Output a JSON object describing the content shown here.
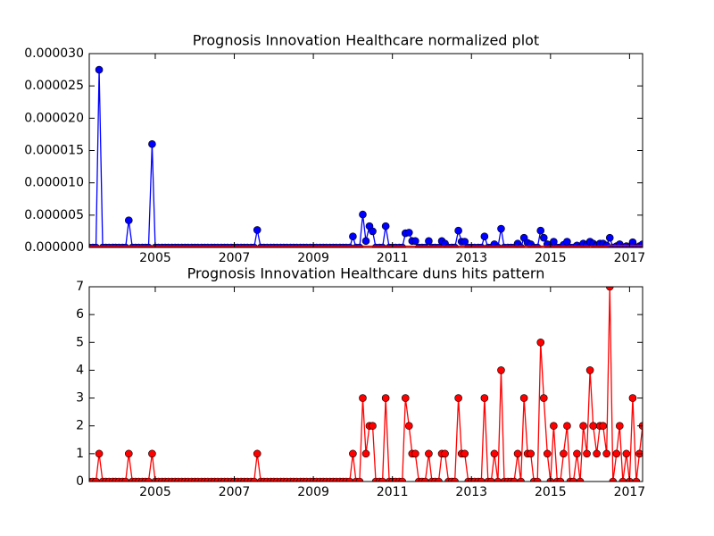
{
  "chart_data": [
    {
      "type": "line",
      "title": "Prognosis Innovation Healthcare normalized plot",
      "xlim": [
        2003.33,
        2017.33
      ],
      "xticks": [
        2005,
        2007,
        2009,
        2011,
        2013,
        2015,
        2017
      ],
      "ylim": [
        0,
        3e-05
      ],
      "yticks": [
        {
          "value": 0,
          "label": "0.000000"
        },
        {
          "value": 5e-06,
          "label": "0.000005"
        },
        {
          "value": 1e-05,
          "label": "0.000010"
        },
        {
          "value": 1.5e-05,
          "label": "0.000015"
        },
        {
          "value": 2e-05,
          "label": "0.000020"
        },
        {
          "value": 2.5e-05,
          "label": "0.000025"
        },
        {
          "value": 3e-05,
          "label": "0.000030"
        }
      ],
      "x": [
        2003.33,
        2003.42,
        2003.5,
        2003.58,
        2003.67,
        2003.75,
        2003.83,
        2003.92,
        2004,
        2004.08,
        2004.17,
        2004.25,
        2004.33,
        2004.42,
        2004.5,
        2004.58,
        2004.67,
        2004.75,
        2004.83,
        2004.92,
        2005,
        2005.08,
        2005.17,
        2005.25,
        2005.33,
        2005.42,
        2005.5,
        2005.58,
        2005.67,
        2005.75,
        2005.83,
        2005.92,
        2006,
        2006.08,
        2006.17,
        2006.25,
        2006.33,
        2006.42,
        2006.5,
        2006.58,
        2006.67,
        2006.75,
        2006.83,
        2006.92,
        2007,
        2007.08,
        2007.17,
        2007.25,
        2007.33,
        2007.42,
        2007.5,
        2007.58,
        2007.67,
        2007.75,
        2007.83,
        2007.92,
        2008,
        2008.08,
        2008.17,
        2008.25,
        2008.33,
        2008.42,
        2008.5,
        2008.58,
        2008.67,
        2008.75,
        2008.83,
        2008.92,
        2009,
        2009.08,
        2009.17,
        2009.25,
        2009.33,
        2009.42,
        2009.5,
        2009.58,
        2009.67,
        2009.75,
        2009.83,
        2009.92,
        2010,
        2010.08,
        2010.17,
        2010.25,
        2010.33,
        2010.42,
        2010.5,
        2010.58,
        2010.67,
        2010.75,
        2010.83,
        2010.92,
        2011,
        2011.08,
        2011.17,
        2011.25,
        2011.33,
        2011.42,
        2011.5,
        2011.58,
        2011.67,
        2011.75,
        2011.83,
        2011.92,
        2012,
        2012.08,
        2012.17,
        2012.25,
        2012.33,
        2012.42,
        2012.5,
        2012.58,
        2012.67,
        2012.75,
        2012.83,
        2012.92,
        2013,
        2013.08,
        2013.17,
        2013.25,
        2013.33,
        2013.42,
        2013.5,
        2013.58,
        2013.67,
        2013.75,
        2013.83,
        2013.92,
        2014,
        2014.08,
        2014.17,
        2014.25,
        2014.33,
        2014.42,
        2014.5,
        2014.58,
        2014.67,
        2014.75,
        2014.83,
        2014.92,
        2015,
        2015.08,
        2015.17,
        2015.25,
        2015.33,
        2015.42,
        2015.5,
        2015.58,
        2015.67,
        2015.75,
        2015.83,
        2015.92,
        2016,
        2016.08,
        2016.17,
        2016.25,
        2016.33,
        2016.42,
        2016.5,
        2016.58,
        2016.67,
        2016.75,
        2016.83,
        2016.92,
        2017,
        2017.08,
        2017.17,
        2017.25,
        2017.33
      ],
      "series": [
        {
          "color": "#0000ff",
          "marker": true,
          "values": [
            0,
            0,
            0,
            2.75e-05,
            0,
            0,
            0,
            0,
            0,
            0,
            0,
            0,
            4.2e-06,
            0,
            0,
            0,
            0,
            0,
            0,
            1.6e-05,
            0,
            0,
            0,
            0,
            0,
            0,
            0,
            0,
            0,
            0,
            0,
            0,
            0,
            0,
            0,
            0,
            0,
            0,
            0,
            0,
            0,
            0,
            0,
            0,
            0,
            0,
            0,
            0,
            0,
            0,
            0,
            2.7e-06,
            0,
            0,
            0,
            0,
            0,
            0,
            0,
            0,
            0,
            0,
            0,
            0,
            0,
            0,
            0,
            0,
            0,
            0,
            0,
            0,
            0,
            0,
            0,
            0,
            0,
            0,
            0,
            0,
            1.7e-06,
            0,
            0,
            5.1e-06,
            1e-06,
            3.3e-06,
            2.5e-06,
            0,
            0,
            0,
            3.3e-06,
            0,
            0,
            0,
            0,
            0,
            2.2e-06,
            2.3e-06,
            1e-06,
            1e-06,
            0,
            0,
            0,
            1e-06,
            0,
            0,
            0,
            1e-06,
            6e-07,
            0,
            0,
            0,
            2.6e-06,
            9e-07,
            9e-07,
            0,
            0,
            0,
            0,
            0,
            1.7e-06,
            0,
            0,
            5e-07,
            0,
            2.9e-06,
            0,
            0,
            0,
            0,
            6e-07,
            0,
            1.5e-06,
            7e-07,
            5e-07,
            0,
            0,
            2.6e-06,
            1.5e-06,
            5e-07,
            0,
            9e-07,
            0,
            0,
            4e-07,
            9e-07,
            0,
            0,
            3e-07,
            0,
            6e-07,
            4e-07,
            9e-07,
            6e-07,
            3e-07,
            6e-07,
            6e-07,
            3e-07,
            1.5e-06,
            0,
            2e-07,
            5e-07,
            0,
            2e-07,
            0,
            8e-07,
            0,
            2e-07,
            5e-07
          ]
        },
        {
          "color": "#ff0000",
          "marker": false,
          "values": [
            2e-07,
            2e-07,
            2e-07,
            2e-07,
            2e-07,
            2e-07,
            2e-07,
            2e-07,
            2e-07,
            2e-07,
            2e-07,
            2e-07,
            2e-07,
            2e-07,
            2e-07,
            2e-07,
            2e-07,
            2e-07,
            2e-07,
            2e-07,
            2e-07,
            2e-07,
            2e-07,
            2e-07,
            2e-07,
            2e-07,
            2e-07,
            2e-07,
            2e-07,
            2e-07,
            2e-07,
            2e-07,
            2e-07,
            2e-07,
            2e-07,
            2e-07,
            2e-07,
            2e-07,
            2e-07,
            2e-07,
            2e-07,
            2e-07,
            2e-07,
            2e-07,
            2e-07,
            2e-07,
            2e-07,
            2e-07,
            2e-07,
            2e-07,
            2e-07,
            2e-07,
            2e-07,
            2e-07,
            2e-07,
            2e-07,
            2e-07,
            2e-07,
            2e-07,
            2e-07,
            2e-07,
            2e-07,
            2e-07,
            2e-07,
            2e-07,
            2e-07,
            2e-07,
            2e-07,
            2e-07,
            2e-07,
            2e-07,
            2e-07,
            2e-07,
            2e-07,
            2e-07,
            2e-07,
            2e-07,
            2e-07,
            2e-07,
            2e-07,
            2e-07,
            2e-07,
            2e-07,
            2e-07,
            2e-07,
            2e-07,
            2e-07,
            2e-07,
            2e-07,
            2e-07,
            2e-07,
            2e-07,
            2e-07,
            2e-07,
            2e-07,
            2e-07,
            2e-07,
            2e-07,
            2e-07,
            2e-07,
            2e-07,
            2e-07,
            2e-07,
            2e-07,
            2e-07,
            2e-07,
            2e-07,
            2e-07,
            2e-07,
            2e-07,
            2e-07,
            2e-07,
            2e-07,
            2e-07,
            2e-07,
            2e-07,
            2e-07,
            2e-07,
            2e-07,
            2e-07,
            2e-07,
            2e-07,
            2e-07,
            2e-07,
            2e-07,
            2e-07,
            2e-07,
            2e-07,
            2e-07,
            2e-07,
            2e-07,
            2e-07,
            2e-07,
            2e-07,
            2e-07,
            2e-07,
            2e-07,
            2e-07,
            2e-07,
            2e-07,
            2e-07,
            2e-07,
            2e-07,
            2e-07,
            2e-07,
            2e-07,
            2e-07,
            2e-07,
            2e-07,
            2e-07,
            2e-07,
            2e-07,
            2e-07,
            2e-07,
            2e-07,
            2e-07,
            2e-07,
            2e-07,
            3e-07,
            3e-07,
            3e-07,
            3e-07,
            3e-07,
            3e-07,
            3e-07,
            3e-07,
            3e-07,
            3e-07,
            3e-07
          ]
        }
      ]
    },
    {
      "type": "line",
      "title": "Prognosis Innovation Healthcare duns hits pattern",
      "xlim": [
        2003.33,
        2017.33
      ],
      "xticks": [
        2005,
        2007,
        2009,
        2011,
        2013,
        2015,
        2017
      ],
      "ylim": [
        0,
        7
      ],
      "yticks": [
        0,
        1,
        2,
        3,
        4,
        5,
        6,
        7
      ],
      "x": [
        2003.33,
        2003.42,
        2003.5,
        2003.58,
        2003.67,
        2003.75,
        2003.83,
        2003.92,
        2004,
        2004.08,
        2004.17,
        2004.25,
        2004.33,
        2004.42,
        2004.5,
        2004.58,
        2004.67,
        2004.75,
        2004.83,
        2004.92,
        2005,
        2005.08,
        2005.17,
        2005.25,
        2005.33,
        2005.42,
        2005.5,
        2005.58,
        2005.67,
        2005.75,
        2005.83,
        2005.92,
        2006,
        2006.08,
        2006.17,
        2006.25,
        2006.33,
        2006.42,
        2006.5,
        2006.58,
        2006.67,
        2006.75,
        2006.83,
        2006.92,
        2007,
        2007.08,
        2007.17,
        2007.25,
        2007.33,
        2007.42,
        2007.5,
        2007.58,
        2007.67,
        2007.75,
        2007.83,
        2007.92,
        2008,
        2008.08,
        2008.17,
        2008.25,
        2008.33,
        2008.42,
        2008.5,
        2008.58,
        2008.67,
        2008.75,
        2008.83,
        2008.92,
        2009,
        2009.08,
        2009.17,
        2009.25,
        2009.33,
        2009.42,
        2009.5,
        2009.58,
        2009.67,
        2009.75,
        2009.83,
        2009.92,
        2010,
        2010.08,
        2010.17,
        2010.25,
        2010.33,
        2010.42,
        2010.5,
        2010.58,
        2010.67,
        2010.75,
        2010.83,
        2010.92,
        2011,
        2011.08,
        2011.17,
        2011.25,
        2011.33,
        2011.42,
        2011.5,
        2011.58,
        2011.67,
        2011.75,
        2011.83,
        2011.92,
        2012,
        2012.08,
        2012.17,
        2012.25,
        2012.33,
        2012.42,
        2012.5,
        2012.58,
        2012.67,
        2012.75,
        2012.83,
        2012.92,
        2013,
        2013.08,
        2013.17,
        2013.25,
        2013.33,
        2013.42,
        2013.5,
        2013.58,
        2013.67,
        2013.75,
        2013.83,
        2013.92,
        2014,
        2014.08,
        2014.17,
        2014.25,
        2014.33,
        2014.42,
        2014.5,
        2014.58,
        2014.67,
        2014.75,
        2014.83,
        2014.92,
        2015,
        2015.08,
        2015.17,
        2015.25,
        2015.33,
        2015.42,
        2015.5,
        2015.58,
        2015.67,
        2015.75,
        2015.83,
        2015.92,
        2016,
        2016.08,
        2016.17,
        2016.25,
        2016.33,
        2016.42,
        2016.5,
        2016.58,
        2016.67,
        2016.75,
        2016.83,
        2016.92,
        2017,
        2017.08,
        2017.17,
        2017.25,
        2017.33
      ],
      "series": [
        {
          "color": "#ff0000",
          "marker": true,
          "values": [
            0,
            0,
            0,
            1,
            0,
            0,
            0,
            0,
            0,
            0,
            0,
            0,
            1,
            0,
            0,
            0,
            0,
            0,
            0,
            1,
            0,
            0,
            0,
            0,
            0,
            0,
            0,
            0,
            0,
            0,
            0,
            0,
            0,
            0,
            0,
            0,
            0,
            0,
            0,
            0,
            0,
            0,
            0,
            0,
            0,
            0,
            0,
            0,
            0,
            0,
            0,
            1,
            0,
            0,
            0,
            0,
            0,
            0,
            0,
            0,
            0,
            0,
            0,
            0,
            0,
            0,
            0,
            0,
            0,
            0,
            0,
            0,
            0,
            0,
            0,
            0,
            0,
            0,
            0,
            0,
            1,
            0,
            0,
            3,
            1,
            2,
            2,
            0,
            0,
            0,
            3,
            0,
            0,
            0,
            0,
            0,
            3,
            2,
            1,
            1,
            0,
            0,
            0,
            1,
            0,
            0,
            0,
            1,
            1,
            0,
            0,
            0,
            3,
            1,
            1,
            0,
            0,
            0,
            0,
            0,
            3,
            0,
            0,
            1,
            0,
            4,
            0,
            0,
            0,
            0,
            1,
            0,
            3,
            1,
            1,
            0,
            0,
            5,
            3,
            1,
            0,
            2,
            0,
            0,
            1,
            2,
            0,
            0,
            1,
            0,
            2,
            1,
            4,
            2,
            1,
            2,
            2,
            1,
            7,
            0,
            1,
            2,
            0,
            1,
            0,
            3,
            0,
            1,
            2
          ]
        }
      ]
    }
  ]
}
